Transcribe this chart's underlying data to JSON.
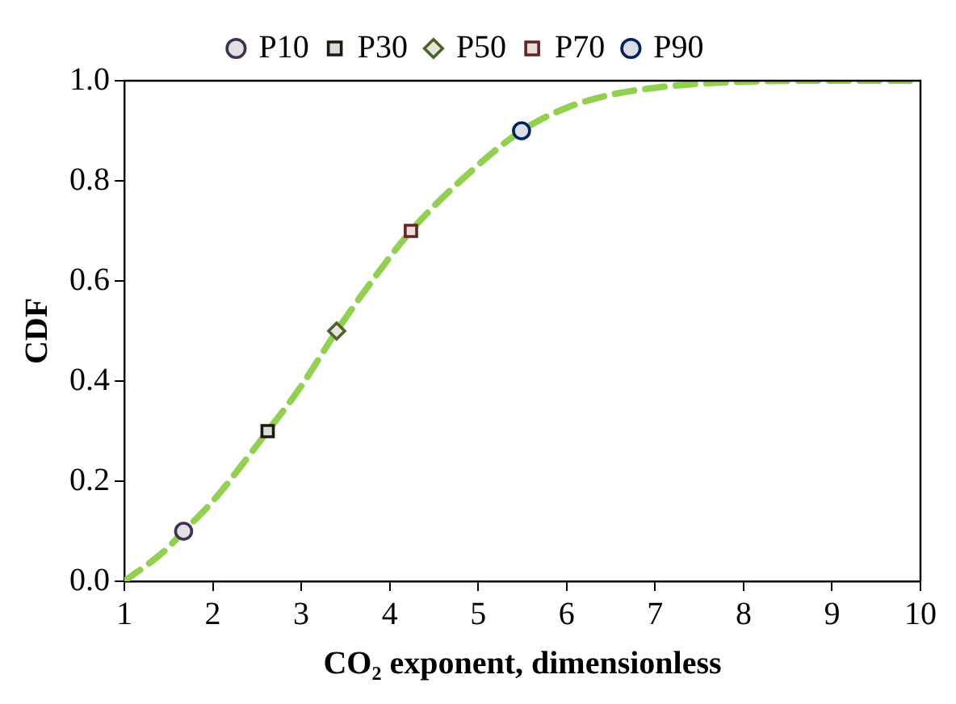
{
  "chart_data": {
    "type": "line",
    "xlabel": "CO₂ exponent, dimensionless",
    "ylabel": "CDF",
    "xlim": [
      1,
      10
    ],
    "xticks": [
      1,
      2,
      3,
      4,
      5,
      6,
      7,
      8,
      9,
      10
    ],
    "ylim": [
      0,
      1
    ],
    "yticks": [
      {
        "value": 0,
        "label": "0.0"
      },
      {
        "value": 0.2,
        "label": "0.2"
      },
      {
        "value": 0.4,
        "label": "0.4"
      },
      {
        "value": 0.6,
        "label": "0.6"
      },
      {
        "value": 0.8,
        "label": "0.8"
      },
      {
        "value": 1,
        "label": "1.0"
      }
    ],
    "grid": false,
    "legend": "top",
    "series": [
      {
        "color": "#92d050",
        "line_style": "dashed",
        "marker": "none",
        "x": [
          1,
          1.45,
          1.67,
          2,
          2.62,
          3,
          3.4,
          3.8,
          4.24,
          4.8,
          5.49,
          6,
          6.5,
          7,
          7.5,
          8,
          9,
          10
        ],
        "values": [
          0,
          0.06,
          0.1,
          0.16,
          0.3,
          0.39,
          0.5,
          0.6,
          0.7,
          0.8,
          0.9,
          0.946,
          0.972,
          0.986,
          0.994,
          0.998,
          1,
          1
        ]
      },
      {
        "type": "scatter",
        "name": "P10",
        "color": "#3f3151",
        "marker": "circle",
        "x": [
          1.67
        ],
        "values": [
          0.1
        ]
      },
      {
        "type": "scatter",
        "name": "P30",
        "color": "#1d1b10",
        "marker": "square",
        "x": [
          2.62
        ],
        "values": [
          0.3
        ]
      },
      {
        "type": "scatter",
        "name": "P50",
        "color": "#4f6228",
        "marker": "diamond",
        "x": [
          3.4
        ],
        "values": [
          0.5
        ]
      },
      {
        "type": "scatter",
        "name": "P70",
        "color": "#632523",
        "marker": "square",
        "x": [
          4.24
        ],
        "values": [
          0.7
        ]
      },
      {
        "type": "scatter",
        "name": "P90",
        "color": "#002060",
        "marker": "circle",
        "x": [
          5.49
        ],
        "values": [
          0.9
        ]
      }
    ]
  }
}
